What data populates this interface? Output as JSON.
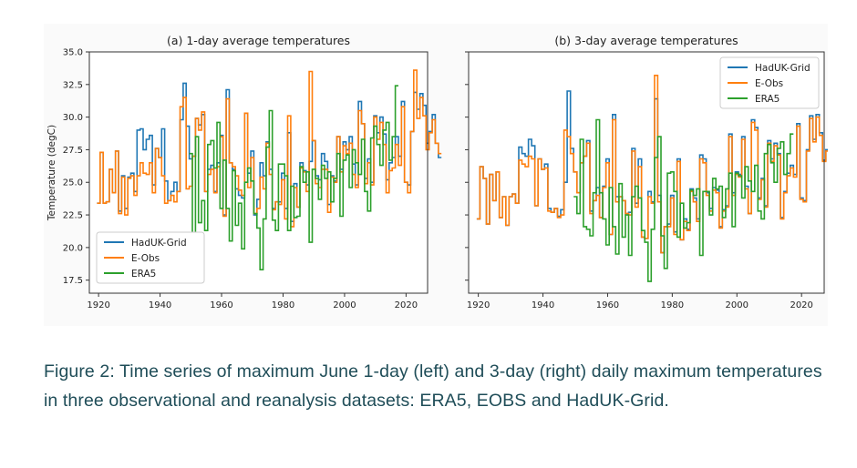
{
  "figure": {
    "caption": "Figure 2: Time series of maximum June 1-day (left) and 3-day (right) daily maximum temperatures in three observational and reanalysis datasets: ERA5, EOBS and HadUK-Grid."
  },
  "chart_data": [
    {
      "type": "line",
      "title": "(a) 1-day average temperatures",
      "xlabel": "",
      "ylabel": "Temperature (degC)",
      "xlim": [
        1917,
        2027
      ],
      "ylim": [
        16.5,
        35
      ],
      "yticks": [
        17.5,
        20.0,
        22.5,
        25.0,
        27.5,
        30.0,
        32.5,
        35.0
      ],
      "xticks": [
        1920,
        1940,
        1960,
        1980,
        2000,
        2020
      ],
      "step": true,
      "legend": "lower-left",
      "series": [
        {
          "name": "HadUK-Grid",
          "color": "#1f77b4",
          "x_start": 1920,
          "values": [
            23.4,
            27.3,
            23.4,
            23.5,
            26.0,
            24.2,
            27.4,
            22.8,
            25.5,
            23.0,
            25.4,
            25.7,
            24.3,
            29.0,
            29.1,
            27.5,
            28.3,
            28.6,
            24.8,
            27.6,
            26.9,
            29.1,
            25.1,
            23.6,
            24.3,
            25.0,
            24.3,
            29.8,
            32.6,
            29.3,
            26.8,
            27.0,
            29.9,
            29.4,
            30.2,
            24.3,
            26.0,
            26.3,
            24.3,
            26.5,
            28.6,
            22.5,
            32.1,
            26.5,
            26.0,
            24.5,
            24.0,
            23.8,
            30.3,
            25.7,
            27.4,
            22.5,
            23.7,
            26.5,
            25.5,
            28.1,
            26.0,
            23.0,
            23.5,
            23.5,
            25.7,
            23.0,
            28.8,
            22.0,
            24.9,
            23.1,
            26.5,
            25.9,
            24.8,
            26.6,
            28.2,
            25.5,
            25.2,
            27.2,
            26.6,
            23.3,
            25.5,
            25.1,
            28.5,
            26.0,
            28.1,
            27.5,
            28.5,
            26.4,
            24.8,
            31.2,
            29.5,
            25.3,
            26.8,
            25.0,
            30.1,
            28.8,
            30.0,
            28.7,
            25.2,
            26.5,
            26.9,
            28.5,
            27.0,
            31.2,
            25.0,
            24.8,
            28.9,
            31.9,
            30.6,
            31.8,
            30.9,
            28.0,
            28.9,
            30.2,
            28.0,
            26.9
          ]
        },
        {
          "name": "E-Obs",
          "color": "#ff7f0e",
          "x_start": 1920,
          "values": [
            23.4,
            27.3,
            23.4,
            23.5,
            26.0,
            24.2,
            27.4,
            22.6,
            25.4,
            22.5,
            25.3,
            25.5,
            24.0,
            25.5,
            26.5,
            25.7,
            25.6,
            26.5,
            24.2,
            27.6,
            26.9,
            25.5,
            23.4,
            23.6,
            24.0,
            23.5,
            24.3,
            30.8,
            31.5,
            24.5,
            24.7,
            27.0,
            29.9,
            29.0,
            30.4,
            24.3,
            25.6,
            26.0,
            24.2,
            26.2,
            28.5,
            22.4,
            31.4,
            26.5,
            26.2,
            25.5,
            24.4,
            24.0,
            30.3,
            24.6,
            26.9,
            22.6,
            23.0,
            25.4,
            24.5,
            28.0,
            25.6,
            22.9,
            23.5,
            23.3,
            25.2,
            22.2,
            30.1,
            21.6,
            24.6,
            23.1,
            26.1,
            25.8,
            24.3,
            33.5,
            28.2,
            24.9,
            24.6,
            26.0,
            26.0,
            22.7,
            25.4,
            25.0,
            28.5,
            25.8,
            27.8,
            27.2,
            28.0,
            25.6,
            24.6,
            30.5,
            29.5,
            24.9,
            26.5,
            24.8,
            30.0,
            28.3,
            29.6,
            27.9,
            24.2,
            25.9,
            26.1,
            27.9,
            26.3,
            30.8,
            25.0,
            24.2,
            28.9,
            33.6,
            29.9,
            31.5,
            30.1,
            27.5,
            28.8,
            29.8,
            28.0,
            27.2
          ]
        },
        {
          "name": "ERA5",
          "color": "#2ca02c",
          "x_start": 1950,
          "values": [
            27.2,
            21.0,
            28.5,
            21.9,
            23.6,
            21.3,
            27.9,
            28.2,
            26.1,
            29.6,
            23.0,
            26.7,
            23.0,
            20.5,
            25.9,
            21.7,
            23.4,
            19.9,
            25.0,
            26.1,
            25.1,
            22.6,
            21.5,
            18.3,
            22.2,
            27.7,
            30.5,
            22.1,
            21.3,
            26.4,
            26.4,
            25.5,
            21.3,
            24.7,
            22.3,
            22.4,
            26.2,
            25.0,
            25.8,
            20.4,
            26.0,
            25.3,
            23.7,
            26.3,
            25.3,
            25.8,
            23.5,
            25.3,
            27.2,
            22.4,
            26.7,
            27.1,
            24.6,
            27.5,
            26.5,
            25.6,
            28.3,
            24.3,
            22.8,
            28.4,
            29.3,
            27.9,
            26.3,
            29.0,
            29.6,
            26.7,
            28.5,
            32.4
          ]
        }
      ]
    },
    {
      "type": "line",
      "title": "(b) 3-day average temperatures",
      "xlabel": "",
      "ylabel": "",
      "xlim": [
        1917,
        2027
      ],
      "ylim": [
        16.5,
        35
      ],
      "xticks": [
        1920,
        1940,
        1960,
        1980,
        2000,
        2020
      ],
      "step": true,
      "legend": "upper-right",
      "series": [
        {
          "name": "HadUK-Grid",
          "color": "#1f77b4",
          "x_start": 1920,
          "values": [
            22.2,
            26.2,
            25.3,
            21.8,
            25.6,
            23.6,
            25.8,
            22.3,
            23.9,
            21.7,
            23.9,
            24.1,
            23.4,
            27.7,
            27.2,
            27.0,
            28.3,
            27.8,
            23.2,
            26.8,
            26.0,
            26.4,
            23.0,
            22.7,
            23.0,
            22.4,
            22.9,
            25.0,
            32.0,
            27.6,
            25.8,
            24.2,
            26.5,
            27.0,
            28.2,
            22.8,
            23.6,
            24.6,
            22.3,
            24.7,
            26.8,
            21.0,
            30.2,
            23.9,
            23.9,
            23.6,
            22.6,
            22.7,
            27.6,
            23.4,
            26.8,
            20.8,
            20.7,
            24.3,
            23.5,
            31.4,
            24.0,
            19.6,
            21.6,
            21.8,
            24.0,
            21.2,
            26.8,
            20.6,
            22.2,
            21.4,
            24.5,
            23.8,
            22.2,
            27.1,
            26.8,
            24.2,
            23.0,
            24.6,
            24.4,
            21.6,
            22.9,
            23.2,
            28.7,
            24.2,
            25.8,
            25.6,
            28.5,
            24.7,
            22.6,
            29.8,
            29.2,
            23.8,
            25.3,
            23.2,
            28.2,
            26.8,
            28.0,
            27.2,
            22.3,
            24.3,
            25.7,
            26.3,
            25.6,
            29.5,
            23.8,
            23.6,
            27.5,
            30.1,
            28.3,
            30.2,
            28.8,
            26.7,
            27.5,
            28.9,
            27.0,
            26.5
          ]
        },
        {
          "name": "E-Obs",
          "color": "#ff7f0e",
          "x_start": 1920,
          "values": [
            22.2,
            26.2,
            25.3,
            21.8,
            25.6,
            23.6,
            25.8,
            22.3,
            23.9,
            21.7,
            23.9,
            24.1,
            23.4,
            26.7,
            26.4,
            26.2,
            27.0,
            26.8,
            23.2,
            26.8,
            26.0,
            26.1,
            22.8,
            22.7,
            23.0,
            22.3,
            22.5,
            29.0,
            28.5,
            27.2,
            25.8,
            24.2,
            26.5,
            27.0,
            28.0,
            22.6,
            23.6,
            24.0,
            22.3,
            24.6,
            26.5,
            21.0,
            29.8,
            23.5,
            23.9,
            23.6,
            22.6,
            22.5,
            27.4,
            23.1,
            26.2,
            20.8,
            20.7,
            23.9,
            23.4,
            33.2,
            23.5,
            19.6,
            21.6,
            21.6,
            23.8,
            21.0,
            26.6,
            20.6,
            22.0,
            21.3,
            24.3,
            23.5,
            22.0,
            26.8,
            26.5,
            24.0,
            22.8,
            24.4,
            24.2,
            21.5,
            22.8,
            23.1,
            28.5,
            24.0,
            25.6,
            25.4,
            28.3,
            24.5,
            22.6,
            29.6,
            29.0,
            23.7,
            25.2,
            23.1,
            28.0,
            26.6,
            27.8,
            27.1,
            22.2,
            24.2,
            25.5,
            26.1,
            25.4,
            29.3,
            23.7,
            23.5,
            27.4,
            29.9,
            28.1,
            30.0,
            28.6,
            26.6,
            27.4,
            28.7,
            26.9,
            26.4
          ]
        },
        {
          "name": "ERA5",
          "color": "#2ca02c",
          "x_start": 1950,
          "values": [
            23.9,
            22.6,
            28.3,
            21.6,
            21.4,
            20.9,
            24.2,
            29.8,
            24.2,
            22.2,
            20.2,
            24.6,
            21.6,
            19.5,
            24.9,
            20.8,
            22.5,
            19.4,
            23.9,
            24.7,
            23.8,
            21.3,
            20.4,
            17.4,
            21.4,
            26.9,
            28.5,
            20.9,
            18.4,
            25.7,
            25.8,
            24.3,
            20.8,
            23.4,
            21.5,
            21.9,
            24.4,
            24.0,
            24.5,
            19.4,
            24.3,
            24.3,
            22.5,
            25.3,
            24.5,
            24.7,
            22.3,
            24.5,
            25.7,
            21.6,
            25.7,
            25.5,
            23.8,
            26.2,
            25.1,
            24.3,
            26.3,
            22.8,
            22.2,
            27.2,
            27.9,
            26.5,
            25.0,
            27.6,
            28.1,
            25.6,
            27.2,
            28.7
          ]
        }
      ]
    }
  ]
}
